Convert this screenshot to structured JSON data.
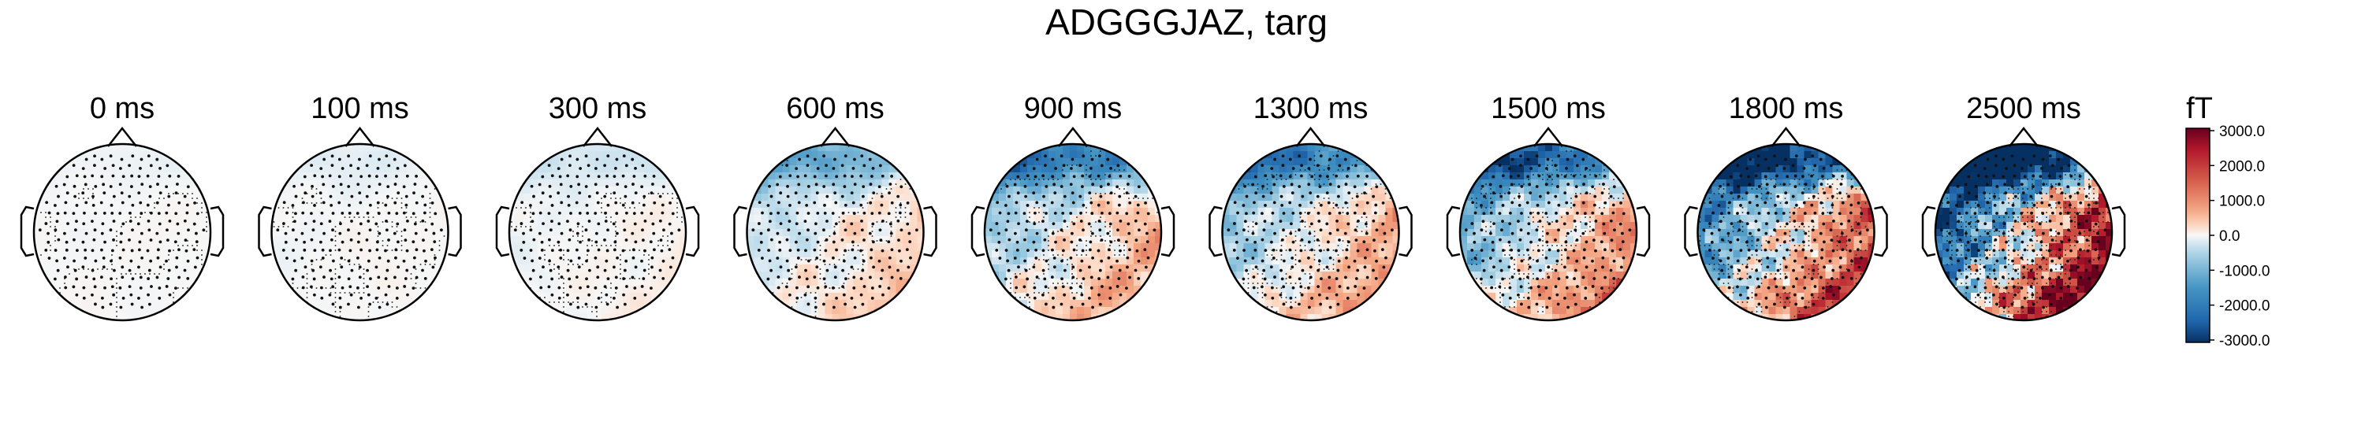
{
  "chart_data": {
    "type": "heatmap",
    "title": "ADGGGJAZ, targ",
    "unit": "fT",
    "colormap": "RdBu_r",
    "vlim": [
      -3000,
      3000
    ],
    "colorbar_ticks": [
      "3000.0",
      "2000.0",
      "1000.0",
      "0.0",
      "-1000.0",
      "-2000.0",
      "-3000.0"
    ],
    "times": [
      "0 ms",
      "100 ms",
      "300 ms",
      "600 ms",
      "900 ms",
      "1300 ms",
      "1500 ms",
      "1800 ms",
      "2500 ms"
    ],
    "amplitude_scale": [
      0.05,
      0.07,
      0.1,
      0.35,
      0.5,
      0.45,
      0.55,
      0.75,
      1.0
    ],
    "sensor_markers": "black dots",
    "contours": true
  }
}
